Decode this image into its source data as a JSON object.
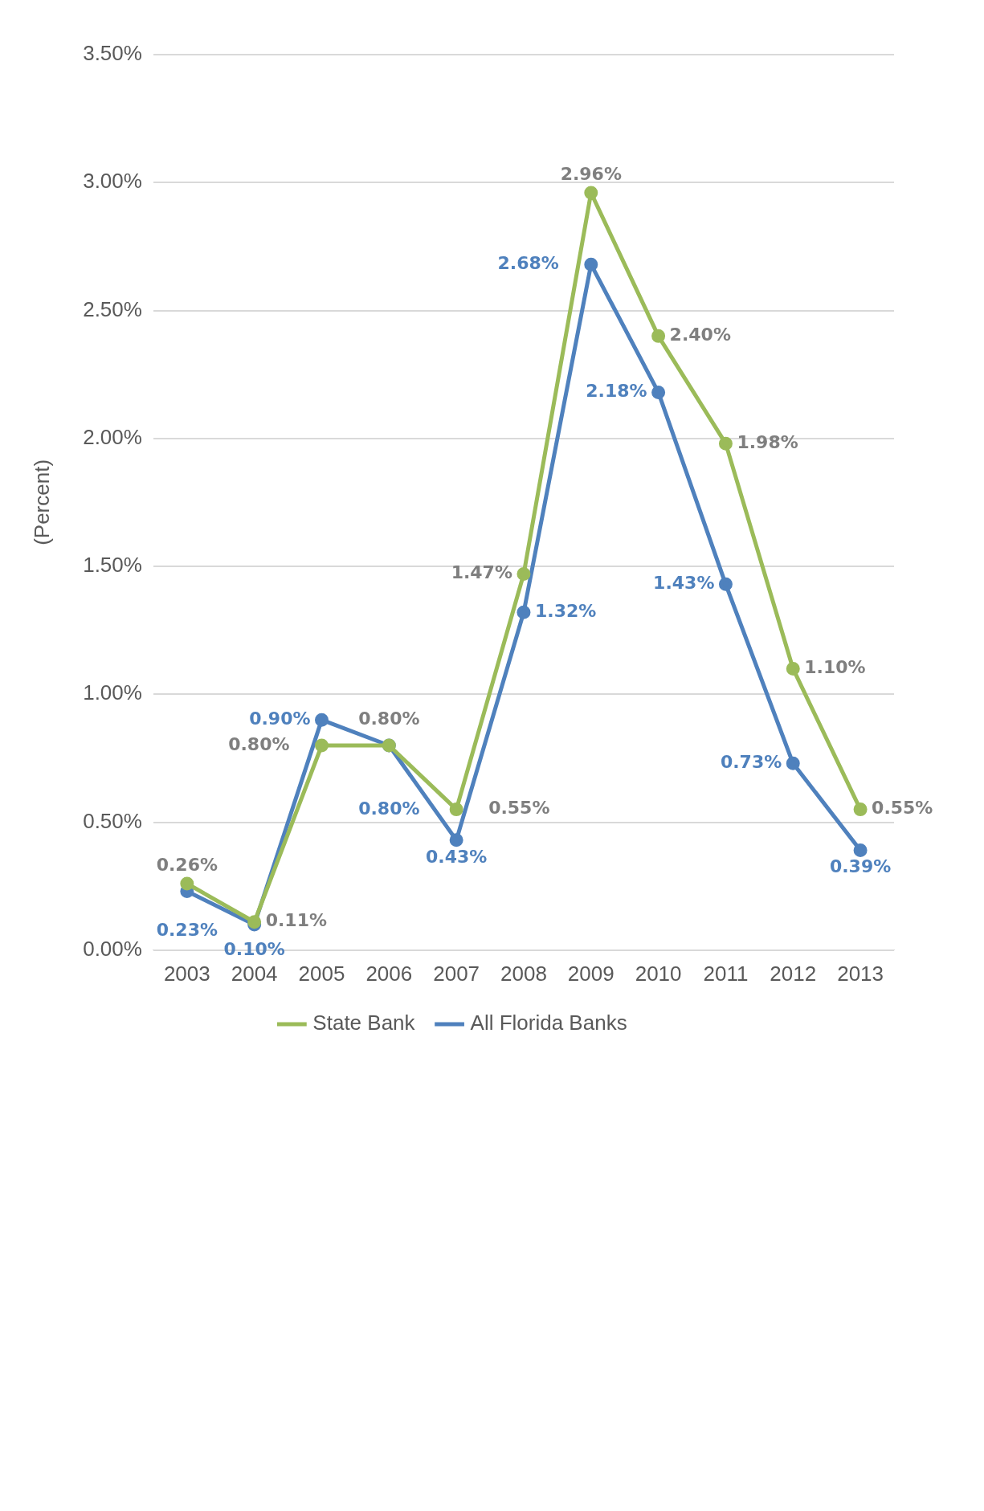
{
  "chart_data": {
    "type": "line",
    "ylabel": "(Percent)",
    "categories": [
      "2003",
      "2004",
      "2005",
      "2006",
      "2007",
      "2008",
      "2009",
      "2010",
      "2011",
      "2012",
      "2013"
    ],
    "series": [
      {
        "name": "State Bank",
        "color": "#9bbb59",
        "values": [
          0.26,
          0.11,
          0.8,
          0.8,
          0.55,
          1.47,
          2.96,
          2.4,
          1.98,
          1.1,
          0.55
        ],
        "value_labels": [
          "0.26%",
          "0.11%",
          "0.80%",
          "0.80%",
          "0.55%",
          "1.47%",
          "2.96%",
          "2.40%",
          "1.98%",
          "1.10%",
          "0.55%"
        ]
      },
      {
        "name": "All Florida Banks",
        "color": "#4f81bd",
        "values": [
          0.23,
          0.1,
          0.9,
          0.8,
          0.43,
          1.32,
          2.68,
          2.18,
          1.43,
          0.73,
          0.39
        ],
        "value_labels": [
          "0.23%",
          "0.10%",
          "0.90%",
          "0.80%",
          "0.43%",
          "1.32%",
          "2.68%",
          "2.18%",
          "1.43%",
          "0.73%",
          "0.39%"
        ]
      }
    ],
    "ylim": [
      0,
      3.5
    ],
    "yticks": [
      {
        "value": 0,
        "label": "0.00%"
      },
      {
        "value": 0.5,
        "label": "0.50%"
      },
      {
        "value": 1,
        "label": "1.00%"
      },
      {
        "value": 1.5,
        "label": "1.50%"
      },
      {
        "value": 2,
        "label": "2.00%"
      },
      {
        "value": 2.5,
        "label": "2.50%"
      },
      {
        "value": 3,
        "label": "3.00%"
      },
      {
        "value": 3.5,
        "label": "3.50%"
      }
    ],
    "grid": "y",
    "legend": "bottom",
    "marker": "circle",
    "line_style": "solid"
  }
}
